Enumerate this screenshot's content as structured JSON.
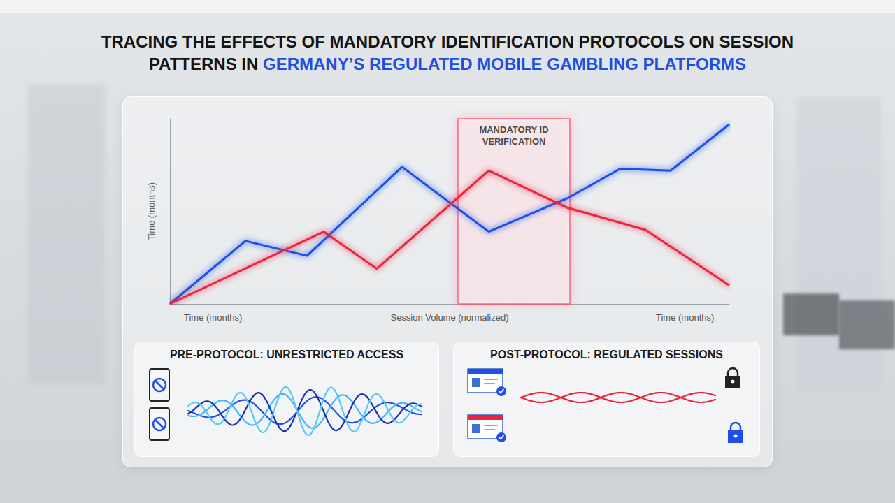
{
  "title": "TRACING THE EFFECTS OF MANDATORY IDENTIFICATION PROTOCOLS ON SESSION PATTERNS IN GERMANY’S REGULATED MOBILE GAMBLING PLATFORMS",
  "title_highlight": "GERMANY’S REGULATED MOBILE GAMBLING PLATFORMS",
  "chart_data": {
    "type": "line",
    "ylabel": "Time (months)",
    "x_axis_labels": [
      "Time (months)",
      "Session Volume (normalized)",
      "Time (months)"
    ],
    "annotation": "MANDATORY ID VERIFICATION",
    "annotation_range": [
      10.3,
      14.3
    ],
    "series": [
      {
        "color": "#1f4fe6",
        "x": [
          0,
          2.7,
          4.9,
          8.3,
          11.4,
          14.2,
          16.1,
          17.9,
          20
        ],
        "values": [
          0,
          34,
          26,
          74,
          39,
          57,
          73,
          72,
          97
        ]
      },
      {
        "color": "#e8253f",
        "x": [
          0,
          5.5,
          7.4,
          11.4,
          14.2,
          17,
          20
        ],
        "values": [
          0,
          39,
          19,
          72,
          52,
          40,
          10
        ]
      }
    ],
    "xlim": [
      0,
      20
    ],
    "ylim": [
      0,
      100
    ],
    "tick_labels": false,
    "grid": false
  },
  "panels": [
    {
      "title": "PRE-PROTOCOL: UNRESTRICTED ACCESS"
    },
    {
      "title": "POST-PROTOCOL: REGULATED SESSIONS"
    }
  ]
}
